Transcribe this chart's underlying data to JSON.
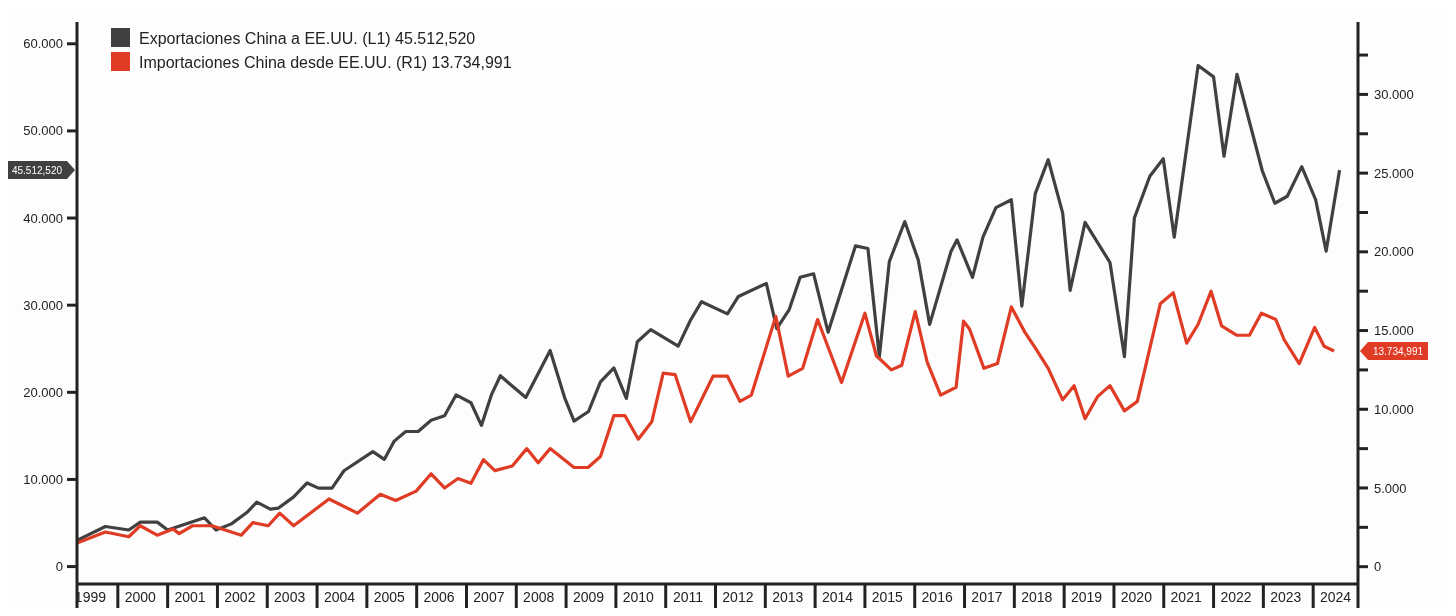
{
  "chart_data": {
    "type": "line",
    "legend": "top left",
    "marker": "none",
    "line_style": "solid",
    "grid": false,
    "xlim": [
      1999.18,
      2024.9
    ],
    "xticks": [
      {
        "value": 1999.45,
        "label": "1999"
      },
      {
        "value": 2000.45,
        "label": "2000"
      },
      {
        "value": 2001.45,
        "label": "2001"
      },
      {
        "value": 2002.45,
        "label": "2002"
      },
      {
        "value": 2003.45,
        "label": "2003"
      },
      {
        "value": 2004.45,
        "label": "2004"
      },
      {
        "value": 2005.45,
        "label": "2005"
      },
      {
        "value": 2006.45,
        "label": "2006"
      },
      {
        "value": 2007.45,
        "label": "2007"
      },
      {
        "value": 2008.45,
        "label": "2008"
      },
      {
        "value": 2009.45,
        "label": "2009"
      },
      {
        "value": 2010.45,
        "label": "2010"
      },
      {
        "value": 2011.45,
        "label": "2011"
      },
      {
        "value": 2012.45,
        "label": "2012"
      },
      {
        "value": 2013.45,
        "label": "2013"
      },
      {
        "value": 2014.45,
        "label": "2014"
      },
      {
        "value": 2015.45,
        "label": "2015"
      },
      {
        "value": 2016.45,
        "label": "2016"
      },
      {
        "value": 2017.45,
        "label": "2017"
      },
      {
        "value": 2018.45,
        "label": "2018"
      },
      {
        "value": 2019.45,
        "label": "2019"
      },
      {
        "value": 2020.45,
        "label": "2020"
      },
      {
        "value": 2021.45,
        "label": "2021"
      },
      {
        "value": 2022.45,
        "label": "2022"
      },
      {
        "value": 2023.45,
        "label": "2023"
      },
      {
        "value": 2024.45,
        "label": "2024"
      }
    ],
    "ylim": [
      -2000,
      62500
    ],
    "yticks": [
      0,
      {
        "value": 10000,
        "label": "10.000"
      },
      {
        "value": 20000,
        "label": "20.000"
      },
      {
        "value": 30000,
        "label": "30.000"
      },
      {
        "value": 40000,
        "label": "40.000"
      },
      {
        "value": 50000,
        "label": "50.000"
      },
      {
        "value": 60000,
        "label": "60.000"
      }
    ],
    "y2lim": [
      -1100,
      34600
    ],
    "y2ticks": [
      0,
      {
        "value": 2500,
        "label": null
      },
      {
        "value": 5000,
        "label": "5.000"
      },
      {
        "value": 7500,
        "label": null
      },
      {
        "value": 10000,
        "label": "10.000"
      },
      {
        "value": 12500,
        "label": null
      },
      {
        "value": 15000,
        "label": "15.000"
      },
      {
        "value": 17500,
        "label": null
      },
      {
        "value": 20000,
        "label": "20.000"
      },
      {
        "value": 22500,
        "label": null
      },
      {
        "value": 25000,
        "label": "25.000"
      },
      {
        "value": 27500,
        "label": null
      },
      {
        "value": 30000,
        "label": "30.000"
      },
      {
        "value": 32500,
        "label": null
      }
    ],
    "series": [
      {
        "name": "Exportaciones China a EE.UU. (L1) 45.512,520",
        "color": "#404040",
        "x": [
          1999.18,
          1999.75,
          2000.22,
          2000.45,
          2000.79,
          2001.0,
          2001.74,
          2001.97,
          2002.28,
          2002.59,
          2002.79,
          2003.06,
          2003.22,
          2003.53,
          2003.8,
          2004.03,
          2004.3,
          2004.54,
          2005.12,
          2005.35,
          2005.55,
          2005.78,
          2006.03,
          2006.29,
          2006.56,
          2006.79,
          2007.09,
          2007.3,
          2007.5,
          2007.68,
          2008.19,
          2008.68,
          2008.97,
          2009.16,
          2009.45,
          2009.69,
          2009.96,
          2010.21,
          2010.43,
          2010.7,
          2011.25,
          2011.5,
          2011.72,
          2012.24,
          2012.46,
          2013.02,
          2013.23,
          2013.48,
          2013.7,
          2013.97,
          2014.26,
          2014.81,
          2015.06,
          2015.29,
          2015.49,
          2015.8,
          2016.07,
          2016.3,
          2016.73,
          2016.85,
          2017.16,
          2017.37,
          2017.63,
          2017.94,
          2018.15,
          2018.42,
          2018.68,
          2018.97,
          2019.12,
          2019.42,
          2019.92,
          2020.21,
          2020.41,
          2020.72,
          2020.99,
          2021.21,
          2021.69,
          2022.0,
          2022.21,
          2022.47,
          2022.98,
          2023.23,
          2023.48,
          2023.77,
          2024.05,
          2024.26,
          2024.53
        ],
        "values": [
          3000,
          4600,
          4200,
          5100,
          5100,
          4200,
          5600,
          4200,
          4900,
          6200,
          7400,
          6600,
          6700,
          8000,
          9600,
          9000,
          9000,
          11000,
          13200,
          12300,
          14400,
          15500,
          15500,
          16800,
          17300,
          19700,
          18800,
          16200,
          19700,
          21900,
          19400,
          24800,
          19400,
          16700,
          17800,
          21200,
          22800,
          19300,
          25800,
          27200,
          25300,
          28300,
          30400,
          29000,
          31000,
          32500,
          27300,
          29500,
          33200,
          33600,
          26900,
          36800,
          36500,
          24100,
          35000,
          39600,
          35200,
          27800,
          36200,
          37500,
          33200,
          37800,
          41200,
          42100,
          29900,
          42800,
          46700,
          40600,
          31700,
          39500,
          34900,
          24100,
          40000,
          44800,
          46800,
          37800,
          57500,
          56200,
          47100,
          56500,
          45400,
          41700,
          42500,
          45900,
          42100,
          36200,
          45500
        ]
      },
      {
        "name": "Importaciones China desde EE.UU. (R1) 13.734,991",
        "color": "#e03c25",
        "axis": "y2",
        "x": [
          1999.18,
          1999.75,
          2000.22,
          2000.45,
          2000.79,
          2001.11,
          2001.23,
          2001.5,
          2001.89,
          2002.48,
          2002.71,
          2003.02,
          2003.25,
          2003.53,
          2004.24,
          2004.81,
          2005.27,
          2005.58,
          2005.99,
          2006.29,
          2006.56,
          2006.83,
          2007.09,
          2007.34,
          2007.57,
          2007.92,
          2008.21,
          2008.44,
          2008.68,
          2009.16,
          2009.44,
          2009.69,
          2009.96,
          2010.18,
          2010.45,
          2010.72,
          2010.95,
          2011.19,
          2011.5,
          2011.95,
          2012.24,
          2012.49,
          2012.72,
          2013.21,
          2013.46,
          2013.75,
          2014.05,
          2014.53,
          2015.0,
          2015.23,
          2015.53,
          2015.74,
          2016.01,
          2016.25,
          2016.52,
          2016.83,
          2016.98,
          2017.1,
          2017.39,
          2017.66,
          2017.94,
          2018.21,
          2018.42,
          2018.68,
          2018.97,
          2019.2,
          2019.42,
          2019.67,
          2019.92,
          2020.21,
          2020.47,
          2020.93,
          2021.19,
          2021.46,
          2021.69,
          2021.95,
          2022.16,
          2022.47,
          2022.72,
          2022.96,
          2023.25,
          2023.42,
          2023.72,
          2024.03,
          2024.22,
          2024.42
        ],
        "values": [
          1500,
          2200,
          1900,
          2600,
          2000,
          2400,
          2100,
          2600,
          2600,
          2000,
          2800,
          2600,
          3400,
          2600,
          4300,
          3400,
          4600,
          4200,
          4800,
          5900,
          5000,
          5600,
          5300,
          6800,
          6100,
          6400,
          7500,
          6600,
          7500,
          6300,
          6300,
          7000,
          9600,
          9600,
          8100,
          9200,
          12300,
          12200,
          9200,
          12100,
          12100,
          10500,
          10900,
          15900,
          12100,
          12600,
          15700,
          11700,
          16100,
          13400,
          12500,
          12800,
          16200,
          13000,
          10900,
          11400,
          15600,
          15100,
          12600,
          12900,
          16500,
          14900,
          13900,
          12600,
          10600,
          11500,
          9400,
          10800,
          11500,
          9900,
          10500,
          16700,
          17400,
          14200,
          15400,
          17500,
          15300,
          14700,
          14700,
          16100,
          15700,
          14400,
          12900,
          15200,
          14000,
          13700
        ]
      }
    ],
    "annotations": [
      "45.512,520",
      "13.734,991"
    ]
  }
}
